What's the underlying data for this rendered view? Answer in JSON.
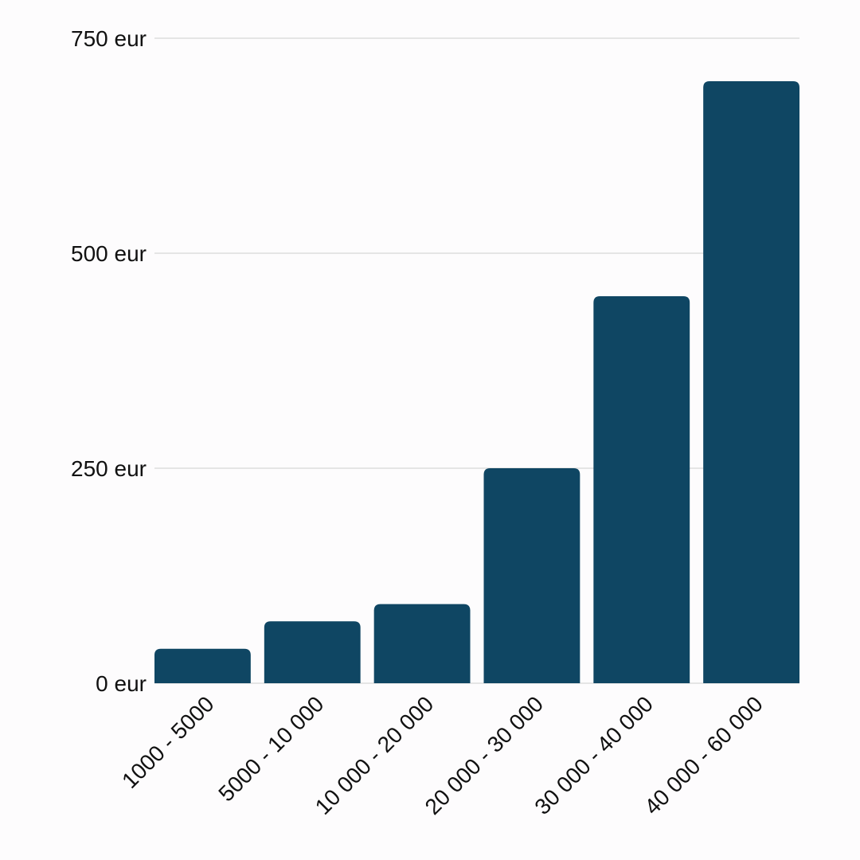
{
  "chart_data": {
    "type": "bar",
    "title": "",
    "xlabel": "",
    "ylabel": "",
    "categories": [
      "1000 - 5000",
      "5000 - 10 000",
      "10 000 - 20 000",
      "20 000 - 30 000",
      "30 000 - 40 000",
      "40 000 - 60 000"
    ],
    "values": [
      40,
      72,
      92,
      250,
      450,
      700
    ],
    "ylim": [
      0,
      750
    ],
    "yticks": [
      {
        "value": 0,
        "label": "0 eur"
      },
      {
        "value": 250,
        "label": "250 eur"
      },
      {
        "value": 500,
        "label": "500 eur"
      },
      {
        "value": 750,
        "label": "750 eur"
      }
    ],
    "grid": true,
    "legend": "none",
    "colors": {
      "bar": "#0f4663",
      "grid": "#dddddd",
      "text": "#111111",
      "background": "#fdfcfd"
    }
  }
}
